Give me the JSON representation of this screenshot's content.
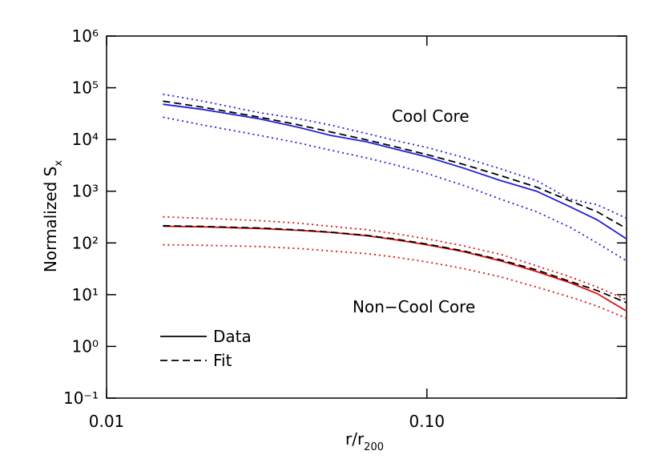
{
  "chart_data": {
    "type": "line",
    "xlabel": "r/r",
    "xlabel_sub": "200",
    "ylabel": "Normalized S",
    "ylabel_sub": "x",
    "xscale": "log",
    "yscale": "log",
    "xlim": [
      0.01,
      0.42
    ],
    "ylim": [
      0.1,
      1000000
    ],
    "xticks": [
      0.01,
      {
        "value": 0.1,
        "label": "0.10"
      }
    ],
    "yticks": [
      {
        "value": 0.1,
        "label": "10⁻¹"
      },
      {
        "value": 1,
        "label": "10⁰"
      },
      {
        "value": 10,
        "label": "10¹"
      },
      {
        "value": 100,
        "label": "10²"
      },
      {
        "value": 1000,
        "label": "10³"
      },
      {
        "value": 10000,
        "label": "10⁴"
      },
      {
        "value": 100000,
        "label": "10⁵"
      },
      {
        "value": 1000000,
        "label": "10⁶"
      }
    ],
    "x": [
      0.015,
      0.02,
      0.03,
      0.04,
      0.05,
      0.065,
      0.08,
      0.1,
      0.13,
      0.17,
      0.22,
      0.28,
      0.34,
      0.42
    ],
    "series": [
      {
        "color": "#1f1fdc",
        "dash": "solid",
        "values": [
          48000,
          38000,
          25000,
          17000,
          12000,
          9000,
          6500,
          4600,
          2800,
          1600,
          1000,
          500,
          280,
          120
        ]
      },
      {
        "color": "#000000",
        "dash": "dashed",
        "values": [
          55000,
          42000,
          27000,
          19000,
          14000,
          9800,
          7200,
          5100,
          3300,
          2000,
          1200,
          650,
          400,
          190
        ]
      },
      {
        "color": "#1f1fdc",
        "dash": "dotted",
        "values": [
          75000,
          55000,
          33000,
          25000,
          19000,
          13000,
          9500,
          7000,
          4500,
          2700,
          1600,
          700,
          550,
          300
        ]
      },
      {
        "color": "#1f1fdc",
        "dash": "dotted",
        "values": [
          27000,
          19000,
          12000,
          8500,
          6200,
          4400,
          3200,
          2200,
          1300,
          700,
          400,
          200,
          100,
          45
        ]
      },
      {
        "color": "#e01010",
        "dash": "solid",
        "values": [
          210,
          205,
          190,
          175,
          160,
          138,
          115,
          92,
          68,
          45,
          28,
          17,
          10.5,
          4.8
        ]
      },
      {
        "color": "#000000",
        "dash": "dashed",
        "values": [
          215,
          208,
          195,
          178,
          162,
          140,
          118,
          95,
          70,
          47,
          30,
          18,
          12,
          7
        ]
      },
      {
        "color": "#e01010",
        "dash": "dotted",
        "values": [
          320,
          300,
          270,
          240,
          210,
          180,
          150,
          120,
          88,
          60,
          36,
          22,
          14,
          8
        ]
      },
      {
        "color": "#e01010",
        "dash": "dotted",
        "values": [
          92,
          90,
          85,
          78,
          70,
          62,
          53,
          43,
          32,
          22,
          14,
          9,
          6,
          3.5
        ]
      }
    ],
    "annotations": [
      {
        "text": "Cool Core",
        "color": "#1f1fdc"
      },
      {
        "text": "Non−Cool Core",
        "color": "#e01010"
      }
    ],
    "legend": [
      {
        "name": "Data",
        "dash": "solid",
        "color": "#000000"
      },
      {
        "name": "Fit",
        "dash": "dashed",
        "color": "#000000"
      }
    ]
  }
}
